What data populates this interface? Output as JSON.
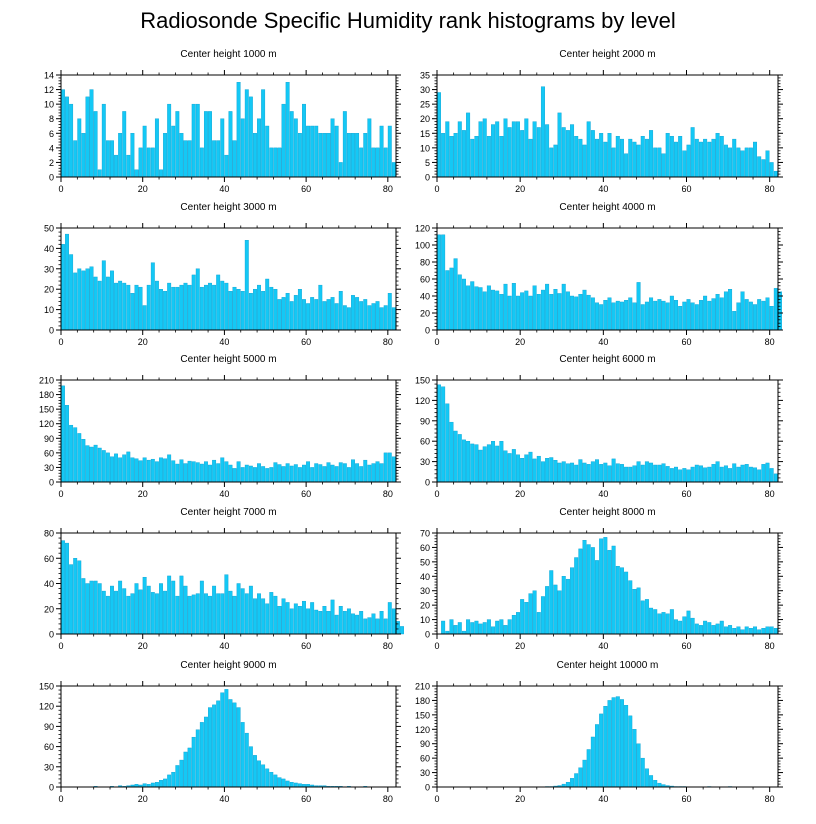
{
  "title": "Radiosonde Specific Humidity rank histograms by level",
  "colors": {
    "bar": "#14C8F5",
    "bar_edge": "#0A9FD0",
    "axis": "#000000"
  },
  "chart_data": [
    {
      "type": "bar",
      "title": "Center height 1000 m",
      "xlim": [
        0,
        82
      ],
      "ylim": [
        0,
        14
      ],
      "yticks": [
        0,
        2,
        4,
        6,
        8,
        10,
        12,
        14
      ],
      "xticks": [
        0,
        20,
        40,
        60,
        80
      ],
      "values": [
        12,
        11,
        10,
        5,
        8,
        6,
        11,
        12,
        9,
        1,
        10,
        5,
        5,
        3,
        6,
        9,
        3,
        6,
        1,
        4,
        7,
        4,
        4,
        8,
        1,
        6,
        10,
        7,
        9,
        6,
        5,
        5,
        10,
        10,
        4,
        9,
        9,
        5,
        5,
        8,
        3,
        9,
        5,
        13,
        8,
        12,
        11,
        6,
        8,
        12,
        7,
        4,
        4,
        4,
        10,
        13,
        9,
        8,
        6,
        10,
        7,
        7,
        7,
        6,
        6,
        6,
        8,
        7,
        2,
        9,
        6,
        6,
        6,
        4,
        6,
        8,
        4,
        4,
        7,
        4,
        7,
        2
      ],
      "xlabel": "",
      "ylabel": ""
    },
    {
      "type": "bar",
      "title": "Center height 2000 m",
      "xlim": [
        0,
        82
      ],
      "ylim": [
        0,
        35
      ],
      "yticks": [
        0,
        5,
        10,
        15,
        20,
        25,
        30,
        35
      ],
      "xticks": [
        0,
        20,
        40,
        60,
        80
      ],
      "values": [
        29,
        15,
        19,
        14,
        15,
        19,
        16,
        22,
        13,
        14,
        19,
        20,
        14,
        18,
        19,
        14,
        20,
        17,
        19,
        19,
        16,
        20,
        13,
        19,
        17,
        31,
        18,
        10,
        11,
        22,
        17,
        16,
        18,
        14,
        13,
        11,
        19,
        16,
        13,
        15,
        12,
        15,
        10,
        14,
        13,
        8,
        13,
        12,
        11,
        14,
        13,
        16,
        10,
        10,
        8,
        15,
        14,
        12,
        14,
        9,
        11,
        17,
        13,
        12,
        13,
        12,
        13,
        15,
        14,
        11,
        10,
        13,
        10,
        9,
        10,
        10,
        12,
        7,
        6,
        9,
        5,
        2
      ],
      "xlabel": "",
      "ylabel": ""
    },
    {
      "type": "bar",
      "title": "Center height 3000 m",
      "xlim": [
        0,
        82
      ],
      "ylim": [
        0,
        50
      ],
      "yticks": [
        0,
        10,
        20,
        30,
        40,
        50
      ],
      "xticks": [
        0,
        20,
        40,
        60,
        80
      ],
      "values": [
        42,
        47,
        37,
        28,
        30,
        29,
        30,
        31,
        26,
        24,
        34,
        26,
        29,
        23,
        24,
        23,
        22,
        18,
        22,
        21,
        12,
        22,
        33,
        24,
        20,
        19,
        23,
        21,
        21,
        22,
        23,
        22,
        27,
        30,
        21,
        22,
        23,
        22,
        27,
        24,
        23,
        19,
        21,
        20,
        19,
        44,
        18,
        20,
        22,
        19,
        25,
        21,
        20,
        15,
        16,
        18,
        14,
        17,
        20,
        15,
        13,
        16,
        15,
        22,
        14,
        15,
        16,
        13,
        19,
        12,
        11,
        17,
        16,
        14,
        15,
        12,
        13,
        14,
        11,
        12,
        18,
        11
      ],
      "xlabel": "",
      "ylabel": ""
    },
    {
      "type": "bar",
      "title": "Center height 4000 m",
      "xlim": [
        0,
        82
      ],
      "ylim": [
        0,
        120
      ],
      "yticks": [
        0,
        20,
        40,
        60,
        80,
        100,
        120
      ],
      "xticks": [
        0,
        20,
        40,
        60,
        80
      ],
      "values": [
        112,
        112,
        70,
        73,
        84,
        65,
        60,
        52,
        57,
        51,
        50,
        45,
        52,
        47,
        46,
        42,
        54,
        40,
        55,
        40,
        44,
        46,
        40,
        52,
        42,
        47,
        54,
        42,
        48,
        43,
        54,
        45,
        40,
        39,
        42,
        47,
        41,
        38,
        32,
        30,
        35,
        38,
        32,
        34,
        33,
        35,
        38,
        32,
        56,
        30,
        33,
        38,
        34,
        36,
        34,
        32,
        40,
        35,
        28,
        33,
        36,
        32,
        30,
        35,
        40,
        34,
        37,
        42,
        38,
        45,
        48,
        22,
        32,
        45,
        36,
        33,
        30,
        36,
        34,
        38,
        28,
        49,
        45
      ],
      "xlabel": "",
      "ylabel": ""
    },
    {
      "type": "bar",
      "title": "Center height 5000 m",
      "xlim": [
        0,
        82
      ],
      "ylim": [
        0,
        210
      ],
      "yticks": [
        0,
        30,
        60,
        90,
        120,
        150,
        180,
        210
      ],
      "xticks": [
        0,
        20,
        40,
        60,
        80
      ],
      "values": [
        198,
        158,
        117,
        112,
        100,
        88,
        75,
        72,
        76,
        70,
        65,
        60,
        52,
        58,
        50,
        56,
        62,
        50,
        48,
        44,
        50,
        45,
        47,
        42,
        50,
        48,
        56,
        44,
        37,
        46,
        38,
        43,
        42,
        40,
        37,
        42,
        35,
        45,
        38,
        50,
        42,
        35,
        28,
        42,
        30,
        35,
        33,
        30,
        38,
        32,
        28,
        30,
        40,
        36,
        32,
        38,
        33,
        36,
        30,
        35,
        42,
        30,
        38,
        36,
        32,
        40,
        35,
        32,
        40,
        38,
        30,
        46,
        38,
        32,
        45,
        35,
        38,
        42,
        38,
        60,
        60,
        52
      ],
      "xlabel": "",
      "ylabel": ""
    },
    {
      "type": "bar",
      "title": "Center height 6000 m",
      "xlim": [
        0,
        82
      ],
      "ylim": [
        0,
        150
      ],
      "yticks": [
        0,
        30,
        60,
        90,
        120,
        150
      ],
      "xticks": [
        0,
        20,
        40,
        60,
        80
      ],
      "values": [
        143,
        140,
        115,
        88,
        75,
        70,
        62,
        60,
        56,
        55,
        47,
        52,
        55,
        60,
        53,
        60,
        46,
        42,
        48,
        40,
        35,
        40,
        44,
        34,
        38,
        30,
        35,
        36,
        32,
        28,
        30,
        27,
        28,
        25,
        33,
        28,
        26,
        30,
        33,
        26,
        28,
        24,
        34,
        27,
        26,
        22,
        22,
        24,
        30,
        25,
        30,
        28,
        25,
        25,
        27,
        23,
        20,
        22,
        18,
        20,
        18,
        22,
        25,
        24,
        21,
        22,
        26,
        30,
        22,
        24,
        20,
        27,
        22,
        25,
        26,
        22,
        21,
        18,
        26,
        28,
        20,
        12
      ],
      "xlabel": "",
      "ylabel": ""
    },
    {
      "type": "bar",
      "title": "Center height 7000 m",
      "xlim": [
        0,
        82
      ],
      "ylim": [
        0,
        80
      ],
      "yticks": [
        0,
        20,
        40,
        60,
        80
      ],
      "xticks": [
        0,
        20,
        40,
        60,
        80
      ],
      "values": [
        74,
        72,
        55,
        60,
        58,
        44,
        40,
        42,
        42,
        40,
        34,
        30,
        38,
        34,
        42,
        36,
        30,
        32,
        40,
        35,
        45,
        38,
        33,
        32,
        40,
        34,
        46,
        42,
        30,
        46,
        38,
        30,
        31,
        32,
        42,
        32,
        30,
        38,
        32,
        32,
        47,
        34,
        30,
        40,
        36,
        32,
        38,
        28,
        32,
        28,
        24,
        33,
        30,
        22,
        28,
        25,
        20,
        24,
        22,
        26,
        20,
        25,
        19,
        18,
        22,
        18,
        27,
        15,
        22,
        18,
        20,
        16,
        15,
        18,
        12,
        13,
        16,
        12,
        18,
        12,
        25,
        20,
        10,
        6
      ],
      "xlabel": "",
      "ylabel": ""
    },
    {
      "type": "bar",
      "title": "Center height 8000 m",
      "xlim": [
        0,
        82
      ],
      "ylim": [
        0,
        70
      ],
      "yticks": [
        0,
        10,
        20,
        30,
        40,
        50,
        60,
        70
      ],
      "xticks": [
        0,
        20,
        40,
        60,
        80
      ],
      "values": [
        0,
        9,
        2,
        10,
        6,
        8,
        2,
        10,
        8,
        9,
        7,
        8,
        10,
        5,
        9,
        10,
        6,
        10,
        13,
        15,
        24,
        22,
        28,
        30,
        15,
        26,
        33,
        44,
        34,
        30,
        40,
        38,
        46,
        53,
        59,
        65,
        62,
        60,
        51,
        66,
        67,
        58,
        61,
        47,
        46,
        43,
        37,
        31,
        32,
        23,
        24,
        18,
        17,
        14,
        15,
        14,
        17,
        10,
        9,
        12,
        16,
        11,
        7,
        6,
        9,
        8,
        6,
        7,
        9,
        5,
        6,
        4,
        5,
        3,
        5,
        4,
        5,
        3,
        4,
        5,
        5,
        4
      ],
      "xlabel": "",
      "ylabel": ""
    },
    {
      "type": "bar",
      "title": "Center height 9000 m",
      "xlim": [
        0,
        82
      ],
      "ylim": [
        0,
        150
      ],
      "yticks": [
        0,
        30,
        60,
        90,
        120,
        150
      ],
      "xticks": [
        0,
        20,
        40,
        60,
        80
      ],
      "values": [
        0,
        0,
        0,
        0,
        0,
        0,
        0,
        0,
        1,
        0,
        0,
        0,
        1,
        0,
        2,
        1,
        2,
        3,
        4,
        3,
        5,
        4,
        6,
        7,
        10,
        12,
        18,
        22,
        32,
        40,
        52,
        58,
        74,
        85,
        96,
        104,
        118,
        122,
        128,
        140,
        145,
        130,
        125,
        118,
        96,
        80,
        60,
        47,
        39,
        33,
        27,
        22,
        18,
        14,
        12,
        9,
        7,
        6,
        5,
        4,
        4,
        3,
        2,
        2,
        2,
        1,
        1,
        1,
        1,
        0,
        1,
        0,
        0,
        0,
        1,
        0,
        0,
        0,
        0,
        0,
        0,
        0
      ],
      "xlabel": "",
      "ylabel": ""
    },
    {
      "type": "bar",
      "title": "Center height 10000 m",
      "xlim": [
        0,
        82
      ],
      "ylim": [
        0,
        210
      ],
      "yticks": [
        0,
        30,
        60,
        90,
        120,
        150,
        180,
        210
      ],
      "xticks": [
        0,
        20,
        40,
        60,
        80
      ],
      "values": [
        0,
        0,
        0,
        0,
        0,
        0,
        0,
        0,
        0,
        0,
        0,
        0,
        0,
        0,
        0,
        0,
        0,
        0,
        0,
        0,
        0,
        0,
        0,
        0,
        0,
        0,
        1,
        1,
        2,
        3,
        6,
        10,
        18,
        28,
        40,
        56,
        78,
        104,
        130,
        152,
        168,
        180,
        186,
        188,
        182,
        170,
        148,
        120,
        90,
        60,
        38,
        24,
        14,
        8,
        5,
        3,
        2,
        1,
        1,
        1,
        0,
        0,
        0,
        0,
        0,
        1,
        0,
        0,
        0,
        0,
        1,
        0,
        0,
        0,
        0,
        0,
        0,
        0,
        0,
        0,
        0,
        0
      ],
      "xlabel": "",
      "ylabel": ""
    }
  ]
}
